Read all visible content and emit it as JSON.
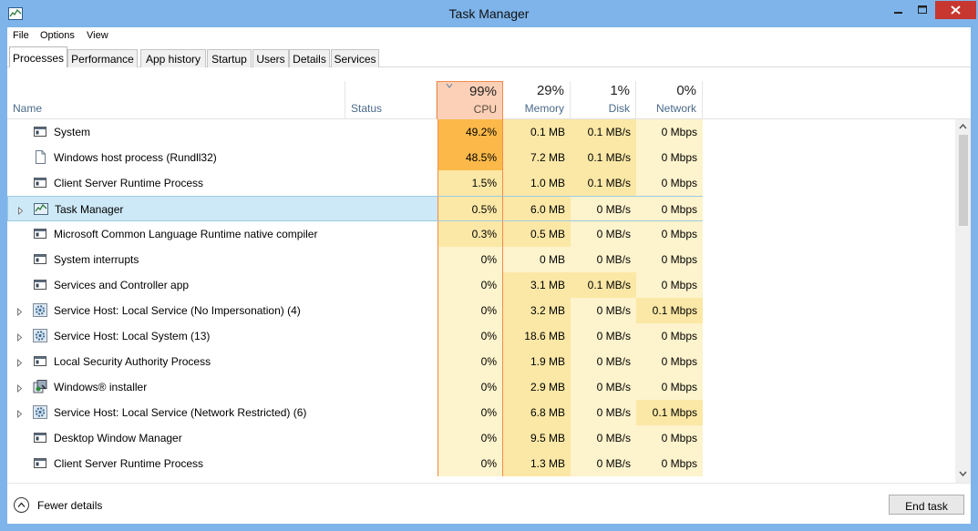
{
  "window": {
    "title": "Task Manager",
    "app_icon": "task-manager-icon"
  },
  "menu": [
    "File",
    "Options",
    "View"
  ],
  "tabs": [
    "Processes",
    "Performance",
    "App history",
    "Startup",
    "Users",
    "Details",
    "Services"
  ],
  "active_tab": "Processes",
  "columns": {
    "name": "Name",
    "status": "Status",
    "cpu": {
      "pct": "99%",
      "label": "CPU"
    },
    "memory": {
      "pct": "29%",
      "label": "Memory"
    },
    "disk": {
      "pct": "1%",
      "label": "Disk"
    },
    "network": {
      "pct": "0%",
      "label": "Network"
    }
  },
  "processes": [
    {
      "name": "System",
      "cpu": "49.2%",
      "memory": "0.1 MB",
      "disk": "0.1 MB/s",
      "network": "0 Mbps",
      "icon": "window-icon",
      "expandable": false
    },
    {
      "name": "Windows host process (Rundll32)",
      "cpu": "48.5%",
      "memory": "7.2 MB",
      "disk": "0.1 MB/s",
      "network": "0 Mbps",
      "icon": "document-icon",
      "expandable": false
    },
    {
      "name": "Client Server Runtime Process",
      "cpu": "1.5%",
      "memory": "1.0 MB",
      "disk": "0.1 MB/s",
      "network": "0 Mbps",
      "icon": "window-icon",
      "expandable": false
    },
    {
      "name": "Task Manager",
      "cpu": "0.5%",
      "memory": "6.0 MB",
      "disk": "0 MB/s",
      "network": "0 Mbps",
      "icon": "task-manager-icon",
      "expandable": true,
      "selected": true
    },
    {
      "name": "Microsoft Common Language Runtime native compiler",
      "cpu": "0.3%",
      "memory": "0.5 MB",
      "disk": "0 MB/s",
      "network": "0 Mbps",
      "icon": "window-icon",
      "expandable": false
    },
    {
      "name": "System interrupts",
      "cpu": "0%",
      "memory": "0 MB",
      "disk": "0 MB/s",
      "network": "0 Mbps",
      "icon": "window-icon",
      "expandable": false
    },
    {
      "name": "Services and Controller app",
      "cpu": "0%",
      "memory": "3.1 MB",
      "disk": "0.1 MB/s",
      "network": "0 Mbps",
      "icon": "window-icon",
      "expandable": false
    },
    {
      "name": "Service Host: Local Service (No Impersonation) (4)",
      "cpu": "0%",
      "memory": "3.2 MB",
      "disk": "0 MB/s",
      "network": "0.1 Mbps",
      "icon": "gear-icon",
      "expandable": true
    },
    {
      "name": "Service Host: Local System (13)",
      "cpu": "0%",
      "memory": "18.6 MB",
      "disk": "0 MB/s",
      "network": "0 Mbps",
      "icon": "gear-icon",
      "expandable": true
    },
    {
      "name": "Local Security Authority Process",
      "cpu": "0%",
      "memory": "1.9 MB",
      "disk": "0 MB/s",
      "network": "0 Mbps",
      "icon": "window-icon",
      "expandable": true
    },
    {
      "name": "Windows® installer",
      "cpu": "0%",
      "memory": "2.9 MB",
      "disk": "0 MB/s",
      "network": "0 Mbps",
      "icon": "installer-icon",
      "expandable": true
    },
    {
      "name": "Service Host: Local Service (Network Restricted) (6)",
      "cpu": "0%",
      "memory": "6.8 MB",
      "disk": "0 MB/s",
      "network": "0.1 Mbps",
      "icon": "gear-icon",
      "expandable": true
    },
    {
      "name": "Desktop Window Manager",
      "cpu": "0%",
      "memory": "9.5 MB",
      "disk": "0 MB/s",
      "network": "0 Mbps",
      "icon": "window-icon",
      "expandable": false
    },
    {
      "name": "Client Server Runtime Process",
      "cpu": "0%",
      "memory": "1.3 MB",
      "disk": "0 MB/s",
      "network": "0 Mbps",
      "icon": "window-icon",
      "expandable": false
    }
  ],
  "footer": {
    "fewer_details": "Fewer details",
    "end_task": "End task"
  },
  "colors": {
    "cpu_header": "#fbd0b6",
    "cpu_high": "#fcb94a",
    "heat_light": "#fdf3cc",
    "heat_medium": "#fbe8a6",
    "selected_row": "#cde8f7"
  }
}
